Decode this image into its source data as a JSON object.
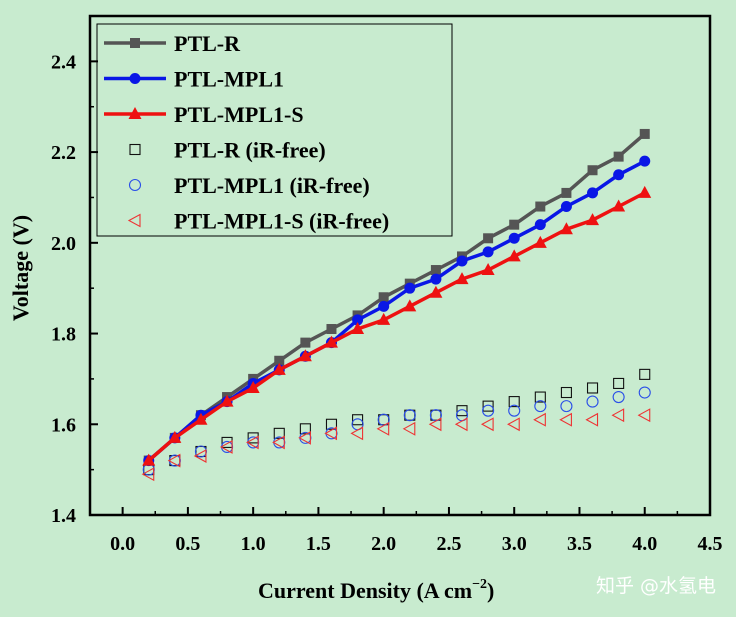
{
  "chart_data": {
    "type": "line",
    "xlabel_main": "Current Density (A cm",
    "xlabel_sup": "−2",
    "xlabel_tail": ")",
    "ylabel": "Voltage (V)",
    "xlim": [
      -0.25,
      4.5
    ],
    "ylim": [
      1.4,
      2.5
    ],
    "xticks": [
      "0.0",
      "0.5",
      "1.0",
      "1.5",
      "2.0",
      "2.5",
      "3.0",
      "3.5",
      "4.0",
      "4.5"
    ],
    "yticks": [
      "1.4",
      "1.6",
      "1.8",
      "2.0",
      "2.2",
      "2.4"
    ],
    "legend_position": "top-left",
    "x": [
      0.2,
      0.4,
      0.6,
      0.8,
      1.0,
      1.2,
      1.4,
      1.6,
      1.8,
      2.0,
      2.2,
      2.4,
      2.6,
      2.8,
      3.0,
      3.2,
      3.4,
      3.6,
      3.8,
      4.0
    ],
    "series": [
      {
        "name": "PTL-R",
        "style": "line-square",
        "color": "#555555",
        "values": [
          1.52,
          1.57,
          1.62,
          1.66,
          1.7,
          1.74,
          1.78,
          1.81,
          1.84,
          1.88,
          1.91,
          1.94,
          1.97,
          2.01,
          2.04,
          2.08,
          2.11,
          2.16,
          2.19,
          2.24
        ]
      },
      {
        "name": "PTL-MPL1",
        "style": "line-circle",
        "color": "#0a17e6",
        "values": [
          1.52,
          1.57,
          1.62,
          1.65,
          1.69,
          1.72,
          1.75,
          1.78,
          1.83,
          1.86,
          1.9,
          1.92,
          1.96,
          1.98,
          2.01,
          2.04,
          2.08,
          2.11,
          2.15,
          2.18
        ]
      },
      {
        "name": "PTL-MPL1-S",
        "style": "line-triangle",
        "color": "#ee1111",
        "values": [
          1.52,
          1.57,
          1.61,
          1.65,
          1.68,
          1.72,
          1.75,
          1.78,
          1.81,
          1.83,
          1.86,
          1.89,
          1.92,
          1.94,
          1.97,
          2.0,
          2.03,
          2.05,
          2.08,
          2.11
        ]
      },
      {
        "name": "PTL-R (iR-free)",
        "style": "open-square",
        "color": "#111111",
        "values": [
          1.5,
          1.52,
          1.54,
          1.56,
          1.57,
          1.58,
          1.59,
          1.6,
          1.61,
          1.61,
          1.62,
          1.62,
          1.63,
          1.64,
          1.65,
          1.66,
          1.67,
          1.68,
          1.69,
          1.71
        ]
      },
      {
        "name": "PTL-MPL1 (iR-free)",
        "style": "open-circle",
        "color": "#2a4fe8",
        "values": [
          1.5,
          1.52,
          1.54,
          1.55,
          1.56,
          1.56,
          1.57,
          1.58,
          1.6,
          1.61,
          1.62,
          1.62,
          1.62,
          1.63,
          1.63,
          1.64,
          1.64,
          1.65,
          1.66,
          1.67
        ]
      },
      {
        "name": "PTL-MPL1-S (iR-free)",
        "style": "open-triangle-left",
        "color": "#ee3333",
        "values": [
          1.49,
          1.52,
          1.53,
          1.55,
          1.56,
          1.56,
          1.57,
          1.58,
          1.58,
          1.59,
          1.59,
          1.6,
          1.6,
          1.6,
          1.6,
          1.61,
          1.61,
          1.61,
          1.62,
          1.62
        ]
      }
    ]
  },
  "watermark": {
    "text": "知乎 @水氢电"
  }
}
